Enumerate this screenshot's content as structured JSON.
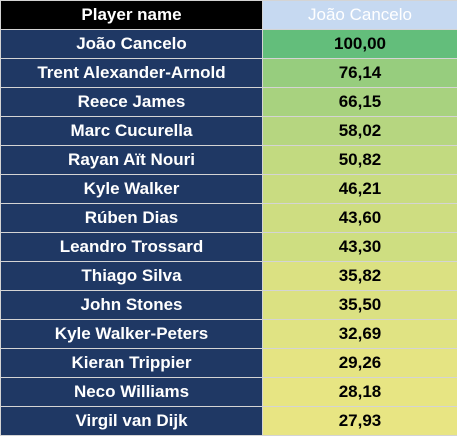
{
  "header": {
    "name_label": "Player name",
    "value_label": "João Cancelo"
  },
  "rows": [
    {
      "player": "João Cancelo",
      "value": "100,00",
      "color": "#63be7b"
    },
    {
      "player": "Trent Alexander-Arnold",
      "value": "76,14",
      "color": "#97cd7e"
    },
    {
      "player": "Reece James",
      "value": "66,15",
      "color": "#a8d27f"
    },
    {
      "player": "Marc Cucurella",
      "value": "58,02",
      "color": "#b6d680"
    },
    {
      "player": "Rayan Aït Nouri",
      "value": "50,82",
      "color": "#c2da80"
    },
    {
      "player": "Kyle Walker",
      "value": "46,21",
      "color": "#c9dc81"
    },
    {
      "player": "Rúben Dias",
      "value": "43,60",
      "color": "#cedd81"
    },
    {
      "player": "Leandro Trossard",
      "value": "43,30",
      "color": "#cede81"
    },
    {
      "player": "Thiago Silva",
      "value": "35,82",
      "color": "#dbe182"
    },
    {
      "player": "John Stones",
      "value": "35,50",
      "color": "#dbe182"
    },
    {
      "player": "Kyle Walker-Peters",
      "value": "32,69",
      "color": "#e0e383"
    },
    {
      "player": "Kieran Trippier",
      "value": "29,26",
      "color": "#e5e483"
    },
    {
      "player": "Neco Williams",
      "value": "28,18",
      "color": "#e7e583"
    },
    {
      "player": "Virgil van Dijk",
      "value": "27,93",
      "color": "#e8e583"
    }
  ]
}
